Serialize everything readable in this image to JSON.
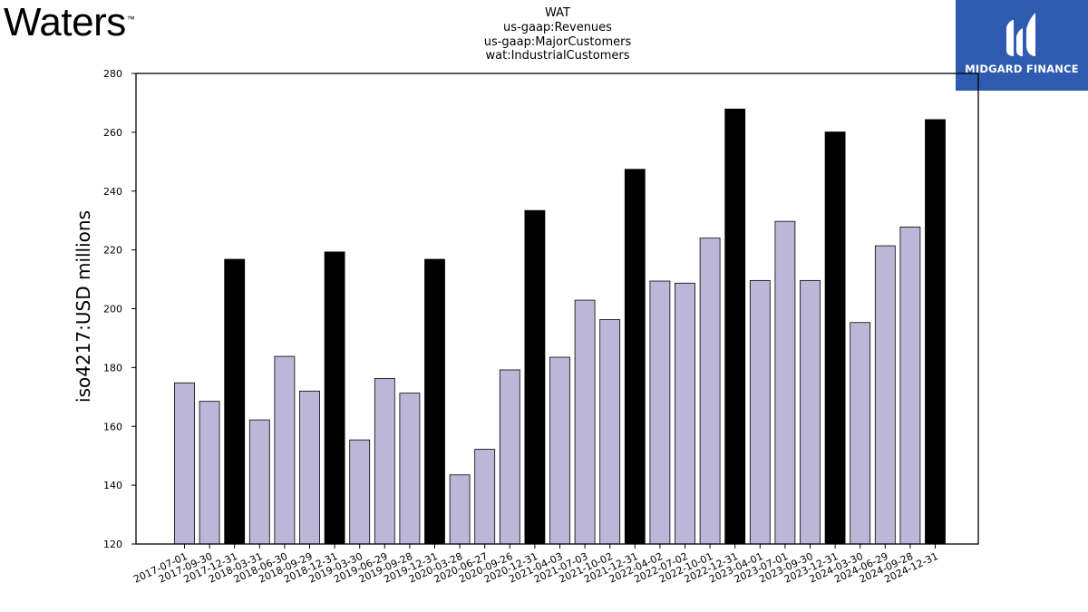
{
  "brand": {
    "name": "Waters",
    "trademark": "™"
  },
  "partner": {
    "name": "MIDGARD FINANCE",
    "color": "#2e5bb0",
    "icon": "midgard-logo-icon"
  },
  "chart_data": {
    "type": "bar",
    "title": [
      "WAT",
      "us-gaap:Revenues",
      "us-gaap:MajorCustomers",
      "wat:IndustrialCustomers"
    ],
    "ylabel": "iso4217:USD  millions",
    "xlabel": "",
    "ylim": [
      120,
      280
    ],
    "yticks": [
      120,
      140,
      160,
      180,
      200,
      220,
      240,
      260,
      280
    ],
    "colors": {
      "quarter": "#bcb7d9",
      "annual": "#000000",
      "edge": "#000000"
    },
    "categories": [
      "2017-07-01",
      "2017-09-30",
      "2017-12-31",
      "2018-03-31",
      "2018-06-30",
      "2018-09-29",
      "2018-12-31",
      "2019-03-30",
      "2019-06-29",
      "2019-09-28",
      "2019-12-31",
      "2020-03-28",
      "2020-06-27",
      "2020-09-26",
      "2020-12-31",
      "2021-04-03",
      "2021-07-03",
      "2021-10-02",
      "2021-12-31",
      "2022-04-02",
      "2022-07-02",
      "2022-10-01",
      "2022-12-31",
      "2023-04-01",
      "2023-07-01",
      "2023-09-30",
      "2023-12-31",
      "2024-03-30",
      "2024-06-29",
      "2024-09-28",
      "2024-12-31"
    ],
    "values": [
      174.8,
      168.5,
      216.8,
      162.2,
      183.8,
      172.0,
      219.3,
      155.4,
      176.3,
      171.3,
      216.8,
      143.5,
      152.2,
      179.2,
      233.4,
      183.5,
      202.9,
      196.3,
      247.4,
      209.4,
      208.7,
      224.0,
      267.9,
      209.6,
      229.7,
      209.6,
      260.1,
      195.3,
      221.4,
      227.8,
      264.3
    ],
    "kinds": [
      "quarter",
      "quarter",
      "annual",
      "quarter",
      "quarter",
      "quarter",
      "annual",
      "quarter",
      "quarter",
      "quarter",
      "annual",
      "quarter",
      "quarter",
      "quarter",
      "annual",
      "quarter",
      "quarter",
      "quarter",
      "annual",
      "quarter",
      "quarter",
      "quarter",
      "annual",
      "quarter",
      "quarter",
      "quarter",
      "annual",
      "quarter",
      "quarter",
      "quarter",
      "annual"
    ]
  }
}
